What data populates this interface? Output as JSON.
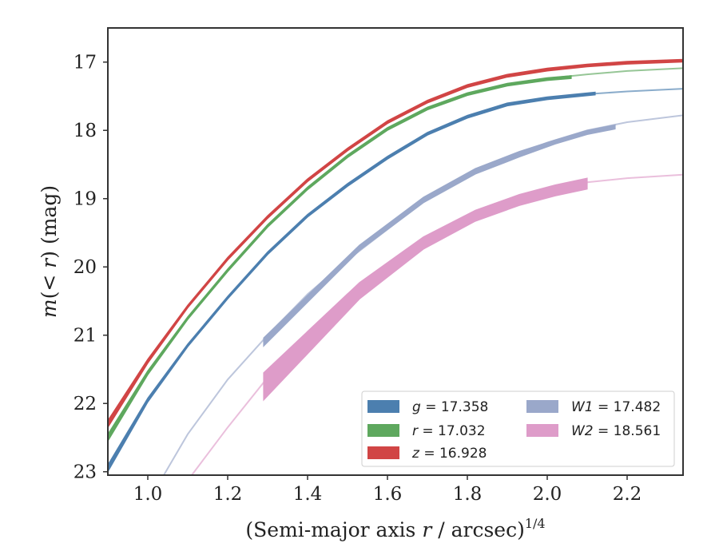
{
  "chart_data": {
    "type": "line",
    "xlabel": "(Semi-major axis r / arcsec)",
    "xlabel_var": "r",
    "xlabel_exp": "1/4",
    "ylabel": "m(< r) (mag)",
    "xlim": [
      0.9,
      2.34
    ],
    "ylim": [
      23.05,
      16.5
    ],
    "y_inverted": true,
    "xticks": [
      "1.0",
      "1.2",
      "1.4",
      "1.6",
      "1.8",
      "2.0",
      "2.2"
    ],
    "yticks": [
      "17",
      "18",
      "19",
      "20",
      "21",
      "22",
      "23"
    ],
    "grid": false,
    "legend_position": "lower-right",
    "legend_columns": 2,
    "series": [
      {
        "name": "g = 17.358",
        "legend_var": "g",
        "legend_value": "= 17.358",
        "color": "#4C7FAF",
        "model_x": [
          0.9,
          1.0,
          1.1,
          1.2,
          1.3,
          1.4,
          1.5,
          1.6,
          1.7,
          1.8,
          1.9,
          2.0,
          2.1,
          2.2,
          2.34
        ],
        "model_y": [
          22.95,
          21.95,
          21.15,
          20.45,
          19.8,
          19.25,
          18.8,
          18.4,
          18.05,
          17.8,
          17.62,
          17.52,
          17.47,
          17.43,
          17.39
        ],
        "data_x": [
          0.9,
          1.0,
          1.1,
          1.2,
          1.3,
          1.4,
          1.5,
          1.6,
          1.7,
          1.8,
          1.9,
          2.0,
          2.12
        ],
        "data_y": [
          22.95,
          21.95,
          21.15,
          20.45,
          19.8,
          19.25,
          18.8,
          18.4,
          18.05,
          17.8,
          17.62,
          17.53,
          17.46
        ],
        "data_err": [
          0.05,
          0.03,
          0.02,
          0.02,
          0.02,
          0.02,
          0.02,
          0.02,
          0.02,
          0.02,
          0.02,
          0.02,
          0.02
        ]
      },
      {
        "name": "r = 17.032",
        "legend_var": "r",
        "legend_value": "= 17.032",
        "color": "#5EA85E",
        "model_x": [
          0.9,
          1.0,
          1.1,
          1.2,
          1.3,
          1.4,
          1.5,
          1.6,
          1.7,
          1.8,
          1.9,
          2.0,
          2.1,
          2.2,
          2.34
        ],
        "model_y": [
          22.5,
          21.55,
          20.75,
          20.05,
          19.4,
          18.85,
          18.38,
          17.98,
          17.68,
          17.47,
          17.33,
          17.24,
          17.18,
          17.13,
          17.09
        ],
        "data_x": [
          0.9,
          1.0,
          1.1,
          1.2,
          1.3,
          1.4,
          1.5,
          1.6,
          1.7,
          1.8,
          1.9,
          2.0,
          2.06
        ],
        "data_y": [
          22.5,
          21.55,
          20.75,
          20.05,
          19.4,
          18.85,
          18.38,
          17.98,
          17.68,
          17.47,
          17.33,
          17.25,
          17.22
        ],
        "data_err": [
          0.05,
          0.03,
          0.02,
          0.02,
          0.02,
          0.02,
          0.02,
          0.02,
          0.02,
          0.02,
          0.02,
          0.02,
          0.02
        ]
      },
      {
        "name": "z = 16.928",
        "legend_var": "z",
        "legend_value": "= 16.928",
        "color": "#D14545",
        "model_x": [
          0.9,
          1.0,
          1.1,
          1.2,
          1.3,
          1.4,
          1.5,
          1.6,
          1.7,
          1.8,
          1.9,
          2.0,
          2.1,
          2.2,
          2.34
        ],
        "model_y": [
          22.3,
          21.38,
          20.58,
          19.88,
          19.27,
          18.73,
          18.28,
          17.88,
          17.58,
          17.35,
          17.2,
          17.11,
          17.05,
          17.01,
          16.98
        ],
        "data_x": [
          0.9,
          1.0,
          1.1,
          1.2,
          1.3,
          1.4,
          1.5,
          1.6,
          1.7,
          1.8,
          1.9,
          2.0,
          2.1,
          2.2,
          2.34
        ],
        "data_y": [
          22.3,
          21.38,
          20.58,
          19.88,
          19.27,
          18.73,
          18.28,
          17.88,
          17.58,
          17.35,
          17.2,
          17.11,
          17.05,
          17.01,
          16.98
        ],
        "data_err": [
          0.05,
          0.03,
          0.02,
          0.02,
          0.02,
          0.02,
          0.02,
          0.02,
          0.02,
          0.02,
          0.02,
          0.02,
          0.02,
          0.02,
          0.02
        ]
      },
      {
        "name": "W1 = 17.482",
        "legend_var": "W1",
        "legend_value": "= 17.482",
        "color": "#9AA8CA",
        "model_x": [
          1.04,
          1.1,
          1.2,
          1.3,
          1.4,
          1.5,
          1.6,
          1.7,
          1.8,
          1.9,
          2.0,
          2.1,
          2.2,
          2.34
        ],
        "model_y": [
          23.05,
          22.45,
          21.65,
          21.0,
          20.4,
          19.9,
          19.45,
          19.0,
          18.65,
          18.4,
          18.18,
          18.0,
          17.88,
          17.78
        ],
        "data_x": [
          1.29,
          1.53,
          1.69,
          1.82,
          1.93,
          2.02,
          2.1,
          2.17
        ],
        "data_y": [
          21.1,
          19.72,
          19.02,
          18.6,
          18.35,
          18.17,
          18.03,
          17.95
        ],
        "data_err": [
          0.06,
          0.04,
          0.04,
          0.04,
          0.04,
          0.03,
          0.03,
          0.03
        ]
      },
      {
        "name": "W2 = 18.561",
        "legend_var": "W2",
        "legend_value": "= 18.561",
        "color": "#DE9CC9",
        "model_x": [
          1.11,
          1.2,
          1.3,
          1.4,
          1.5,
          1.6,
          1.7,
          1.8,
          1.9,
          2.0,
          2.1,
          2.2,
          2.34
        ],
        "model_y": [
          23.05,
          22.35,
          21.62,
          20.95,
          20.4,
          19.95,
          19.6,
          19.3,
          19.05,
          18.88,
          18.76,
          18.7,
          18.65
        ],
        "data_x": [
          1.29,
          1.53,
          1.69,
          1.82,
          1.93,
          2.02,
          2.1
        ],
        "data_y": [
          21.75,
          20.35,
          19.65,
          19.25,
          19.02,
          18.88,
          18.78
        ],
        "data_err": [
          0.2,
          0.12,
          0.09,
          0.08,
          0.08,
          0.08,
          0.08
        ]
      }
    ]
  }
}
